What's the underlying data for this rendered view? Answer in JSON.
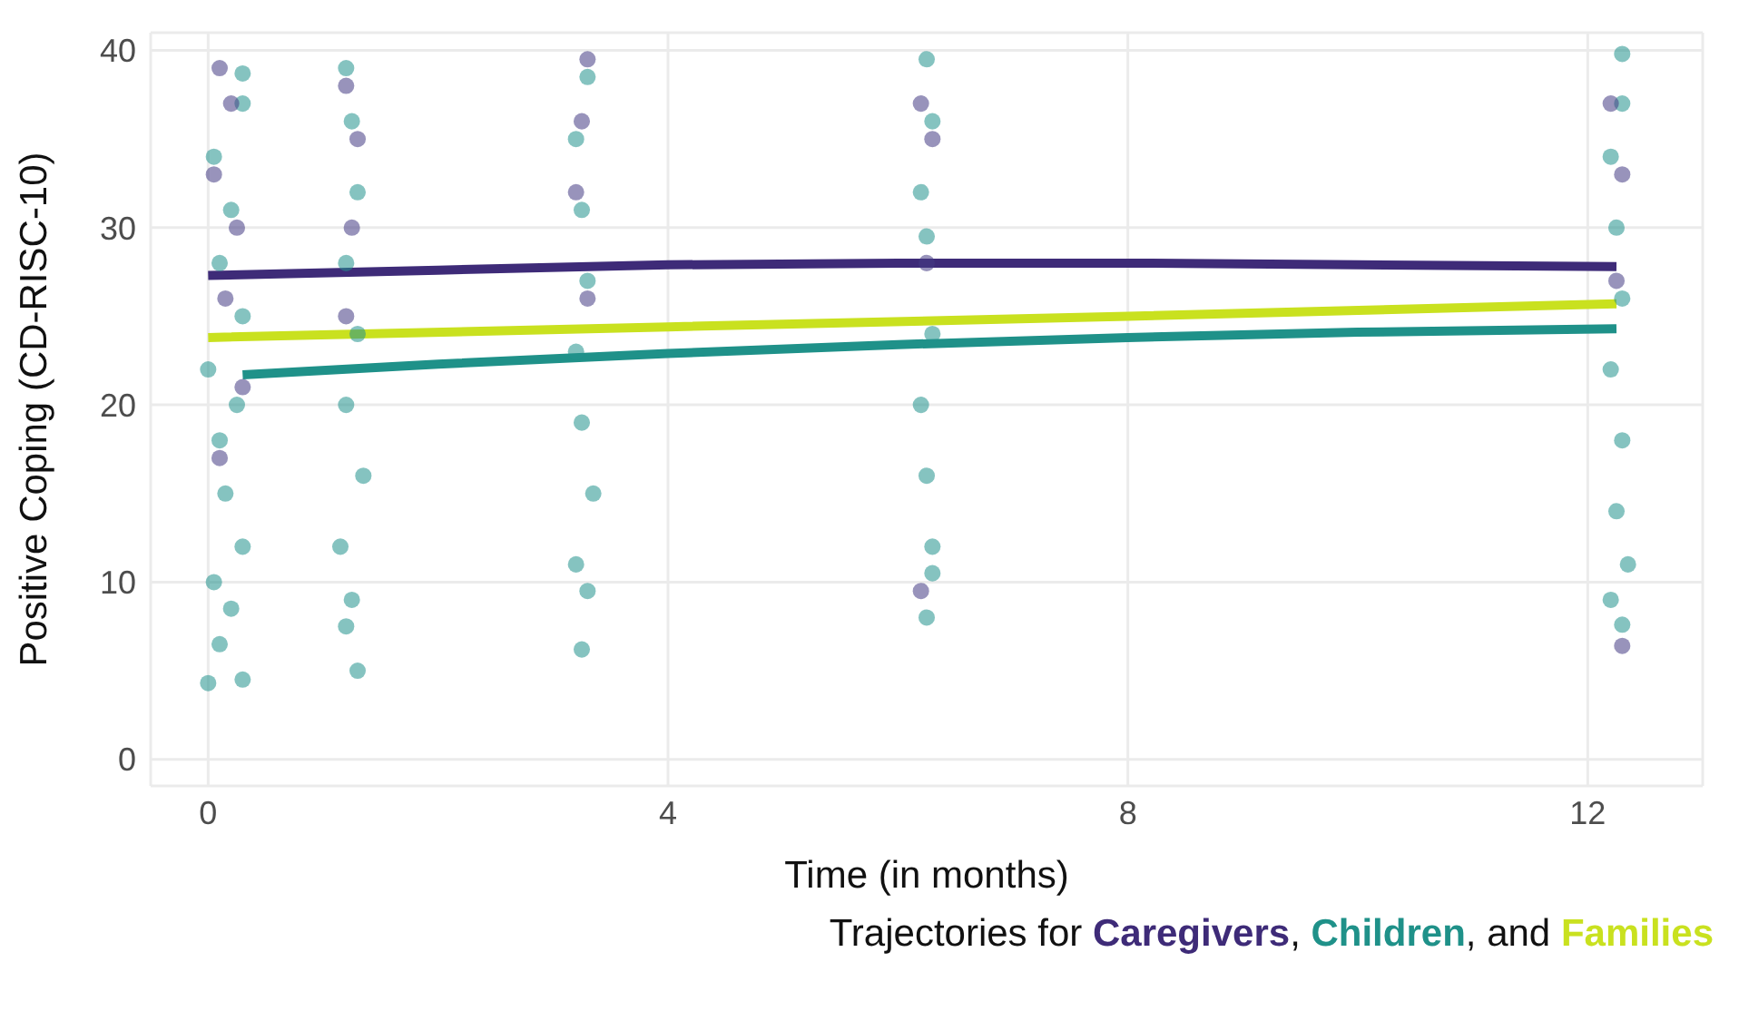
{
  "chart_data": {
    "type": "scatter",
    "xlabel": "Time (in months)",
    "ylabel": "Positive Coping (CD-RISC-10)",
    "xlim": [
      -0.5,
      13
    ],
    "xticks": [
      0,
      4,
      8,
      12
    ],
    "ylim": [
      -1.5,
      41
    ],
    "yticks": [
      0,
      10,
      20,
      30,
      40
    ],
    "grid": true,
    "legend": "bottom",
    "legend_title": "Trajectories for",
    "annotations": [
      ", ",
      ", and "
    ],
    "series": [
      {
        "marker": "circle",
        "color": "#21918c",
        "x": [
          0.0,
          0.3,
          0.1,
          0.2,
          0.05,
          0.3,
          0.15,
          0.1,
          0.25,
          0.0,
          0.3,
          0.1,
          0.2,
          0.05,
          0.3,
          0.3,
          1.3,
          1.2,
          1.25,
          1.15,
          1.35,
          1.2,
          1.3,
          1.2,
          1.3,
          1.25,
          1.2,
          3.25,
          3.3,
          3.2,
          3.35,
          3.25,
          3.2,
          3.3,
          3.25,
          3.2,
          3.3,
          6.25,
          6.3,
          6.3,
          6.25,
          6.2,
          6.3,
          6.25,
          6.2,
          6.3,
          6.25,
          12.3,
          12.2,
          12.35,
          12.25,
          12.3,
          12.2,
          12.3,
          12.25,
          12.2,
          12.3,
          12.3
        ],
        "values": [
          4.3,
          4.5,
          6.5,
          8.5,
          10,
          12,
          15,
          18,
          20,
          22,
          25,
          28,
          31,
          34,
          37,
          38.7,
          5,
          7.5,
          9,
          12,
          16,
          20,
          24,
          28,
          32,
          36,
          39,
          6.2,
          9.5,
          11,
          15,
          19,
          23,
          27,
          31,
          35,
          38.5,
          8,
          10.5,
          12,
          16,
          20,
          24,
          29.5,
          32,
          36,
          39.5,
          7.6,
          9,
          11,
          14,
          18,
          22,
          26,
          30,
          34,
          37,
          39.8
        ]
      },
      {
        "marker": "circle",
        "color": "#443a83",
        "x": [
          0.1,
          0.2,
          0.05,
          0.25,
          0.15,
          0.3,
          0.1,
          1.2,
          1.3,
          1.25,
          1.2,
          3.3,
          3.25,
          3.2,
          3.3,
          6.2,
          6.3,
          6.25,
          6.2,
          12.2,
          12.3,
          12.25,
          12.3
        ],
        "values": [
          39,
          37,
          33,
          30,
          26,
          21,
          17,
          38,
          35,
          30,
          25,
          39.5,
          36,
          32,
          26,
          37,
          35,
          28,
          9.5,
          37,
          33,
          27,
          6.4
        ]
      },
      {
        "type": "line",
        "marker": "none",
        "name": "Caregivers",
        "color": "#3e2b78",
        "x": [
          0,
          2,
          4,
          6,
          8,
          10,
          12.25
        ],
        "values": [
          27.3,
          27.6,
          27.9,
          28.0,
          28.0,
          27.9,
          27.8
        ]
      },
      {
        "type": "line",
        "marker": "none",
        "name": "Children",
        "color": "#1f9189",
        "x": [
          0.3,
          2,
          4,
          6,
          8,
          10,
          12.25
        ],
        "values": [
          21.7,
          22.3,
          22.9,
          23.4,
          23.8,
          24.1,
          24.3
        ]
      },
      {
        "type": "line",
        "marker": "none",
        "name": "Families",
        "color": "#c9e11f",
        "x": [
          0,
          4,
          8,
          12.25
        ],
        "values": [
          23.8,
          24.4,
          25.0,
          25.7
        ]
      }
    ]
  }
}
